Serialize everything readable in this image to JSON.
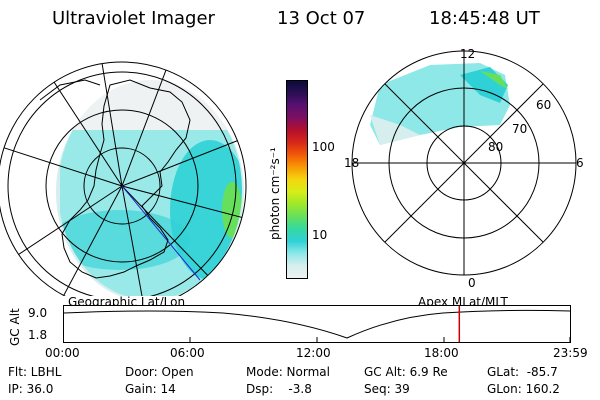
{
  "header": {
    "instrument": "Ultraviolet Imager",
    "date": "13 Oct 07",
    "time": "18:45:48 UT"
  },
  "colorbar": {
    "label": "photon cm⁻²s⁻¹",
    "ticks": [
      "100",
      "10"
    ],
    "colors": [
      "#0b0b38",
      "#2b0f55",
      "#5a1070",
      "#7d0f60",
      "#b4102d",
      "#d72818",
      "#f25a08",
      "#f79a04",
      "#f5d50e",
      "#d6ee18",
      "#9ee82a",
      "#66e05c",
      "#35d9a0",
      "#2fd1d6",
      "#8ee8e8",
      "#d6eeee",
      "#eef2f2"
    ]
  },
  "left_map": {
    "label": "Geographic Lat/Lon"
  },
  "right_map": {
    "label": "Apex MLat/MLT",
    "mlt_labels": {
      "top": "12",
      "left": "18",
      "right": "6",
      "bottom": "0"
    },
    "lat_labels": [
      "60",
      "70",
      "80"
    ]
  },
  "altitude_plot": {
    "ylabel": "GC Alt",
    "yticks": [
      "9.0",
      "1.8"
    ],
    "xticks": [
      "00:00",
      "06:00",
      "12:00",
      "18:00",
      "23:59"
    ],
    "current_time_marker_hour": 18.76,
    "marker_color": "#cc0000"
  },
  "status": {
    "flt": "Flt: LBHL",
    "ip": "IP: 36.0",
    "door": "Door: Open",
    "gain": "Gain: 14",
    "mode": "Mode: Normal",
    "dsp": "Dsp:    -3.8",
    "gc_alt": "GC Alt: 6.9 Re",
    "seq": "Seq: 39",
    "glat": "GLat:  -85.7",
    "glon": "GLon: 160.2"
  }
}
